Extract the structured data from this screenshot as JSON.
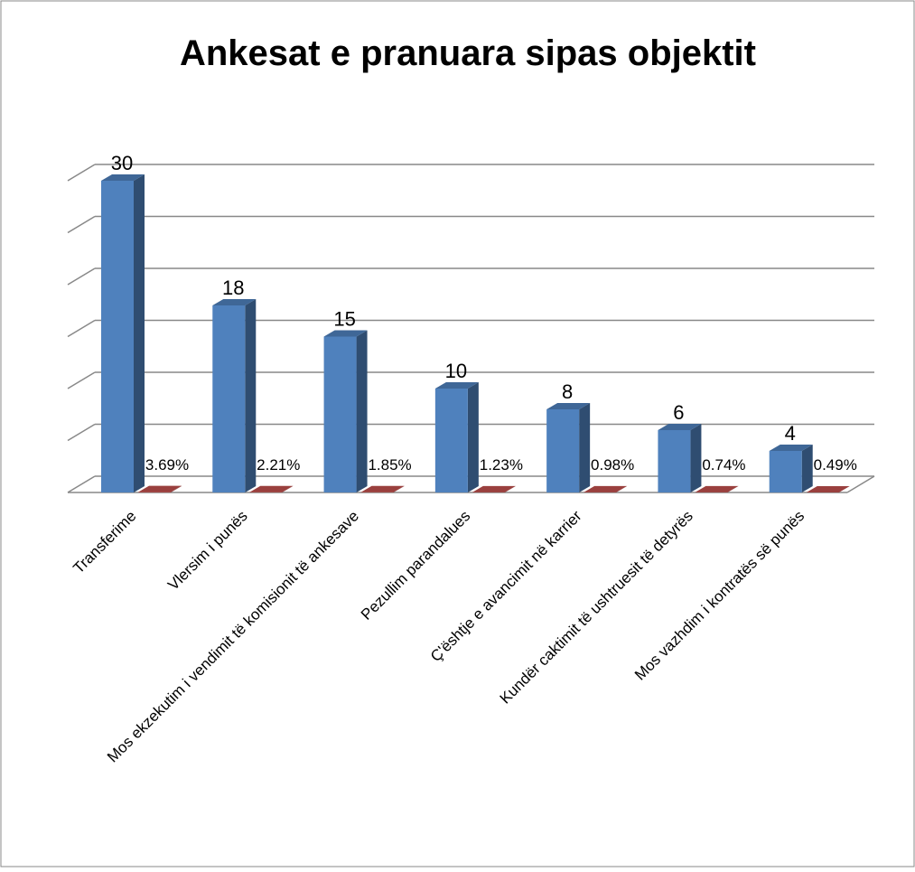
{
  "chart_data": {
    "type": "bar3d",
    "title": "Ankesat e pranuara sipas objektit",
    "categories": [
      "Transferime",
      "Vlersim i punës",
      "Mos ekzekutim i vendimit të komisionit të ankesave",
      "Pezullim parandalues",
      "Ç'ështje e avancimit në karrier",
      "Kundër caktimit të ushtruesit të detyrës",
      "Mos vazhdim i kontratës së punës"
    ],
    "series": [
      {
        "color": "#4f81bd",
        "values": [
          30,
          18,
          15,
          10,
          8,
          6,
          4
        ]
      },
      {
        "color": "#c0504d",
        "values": [
          0.0369,
          0.0221,
          0.0185,
          0.0123,
          0.0098,
          0.0074,
          0.0049
        ],
        "value_labels": [
          "3.69%",
          "2.21%",
          "1.85%",
          "1.23%",
          "0.98%",
          "0.74%",
          "0.49%"
        ]
      }
    ],
    "ylim": [
      0,
      30
    ],
    "yticks": [
      0,
      5,
      10,
      15,
      20,
      25,
      30
    ],
    "grid": true
  }
}
